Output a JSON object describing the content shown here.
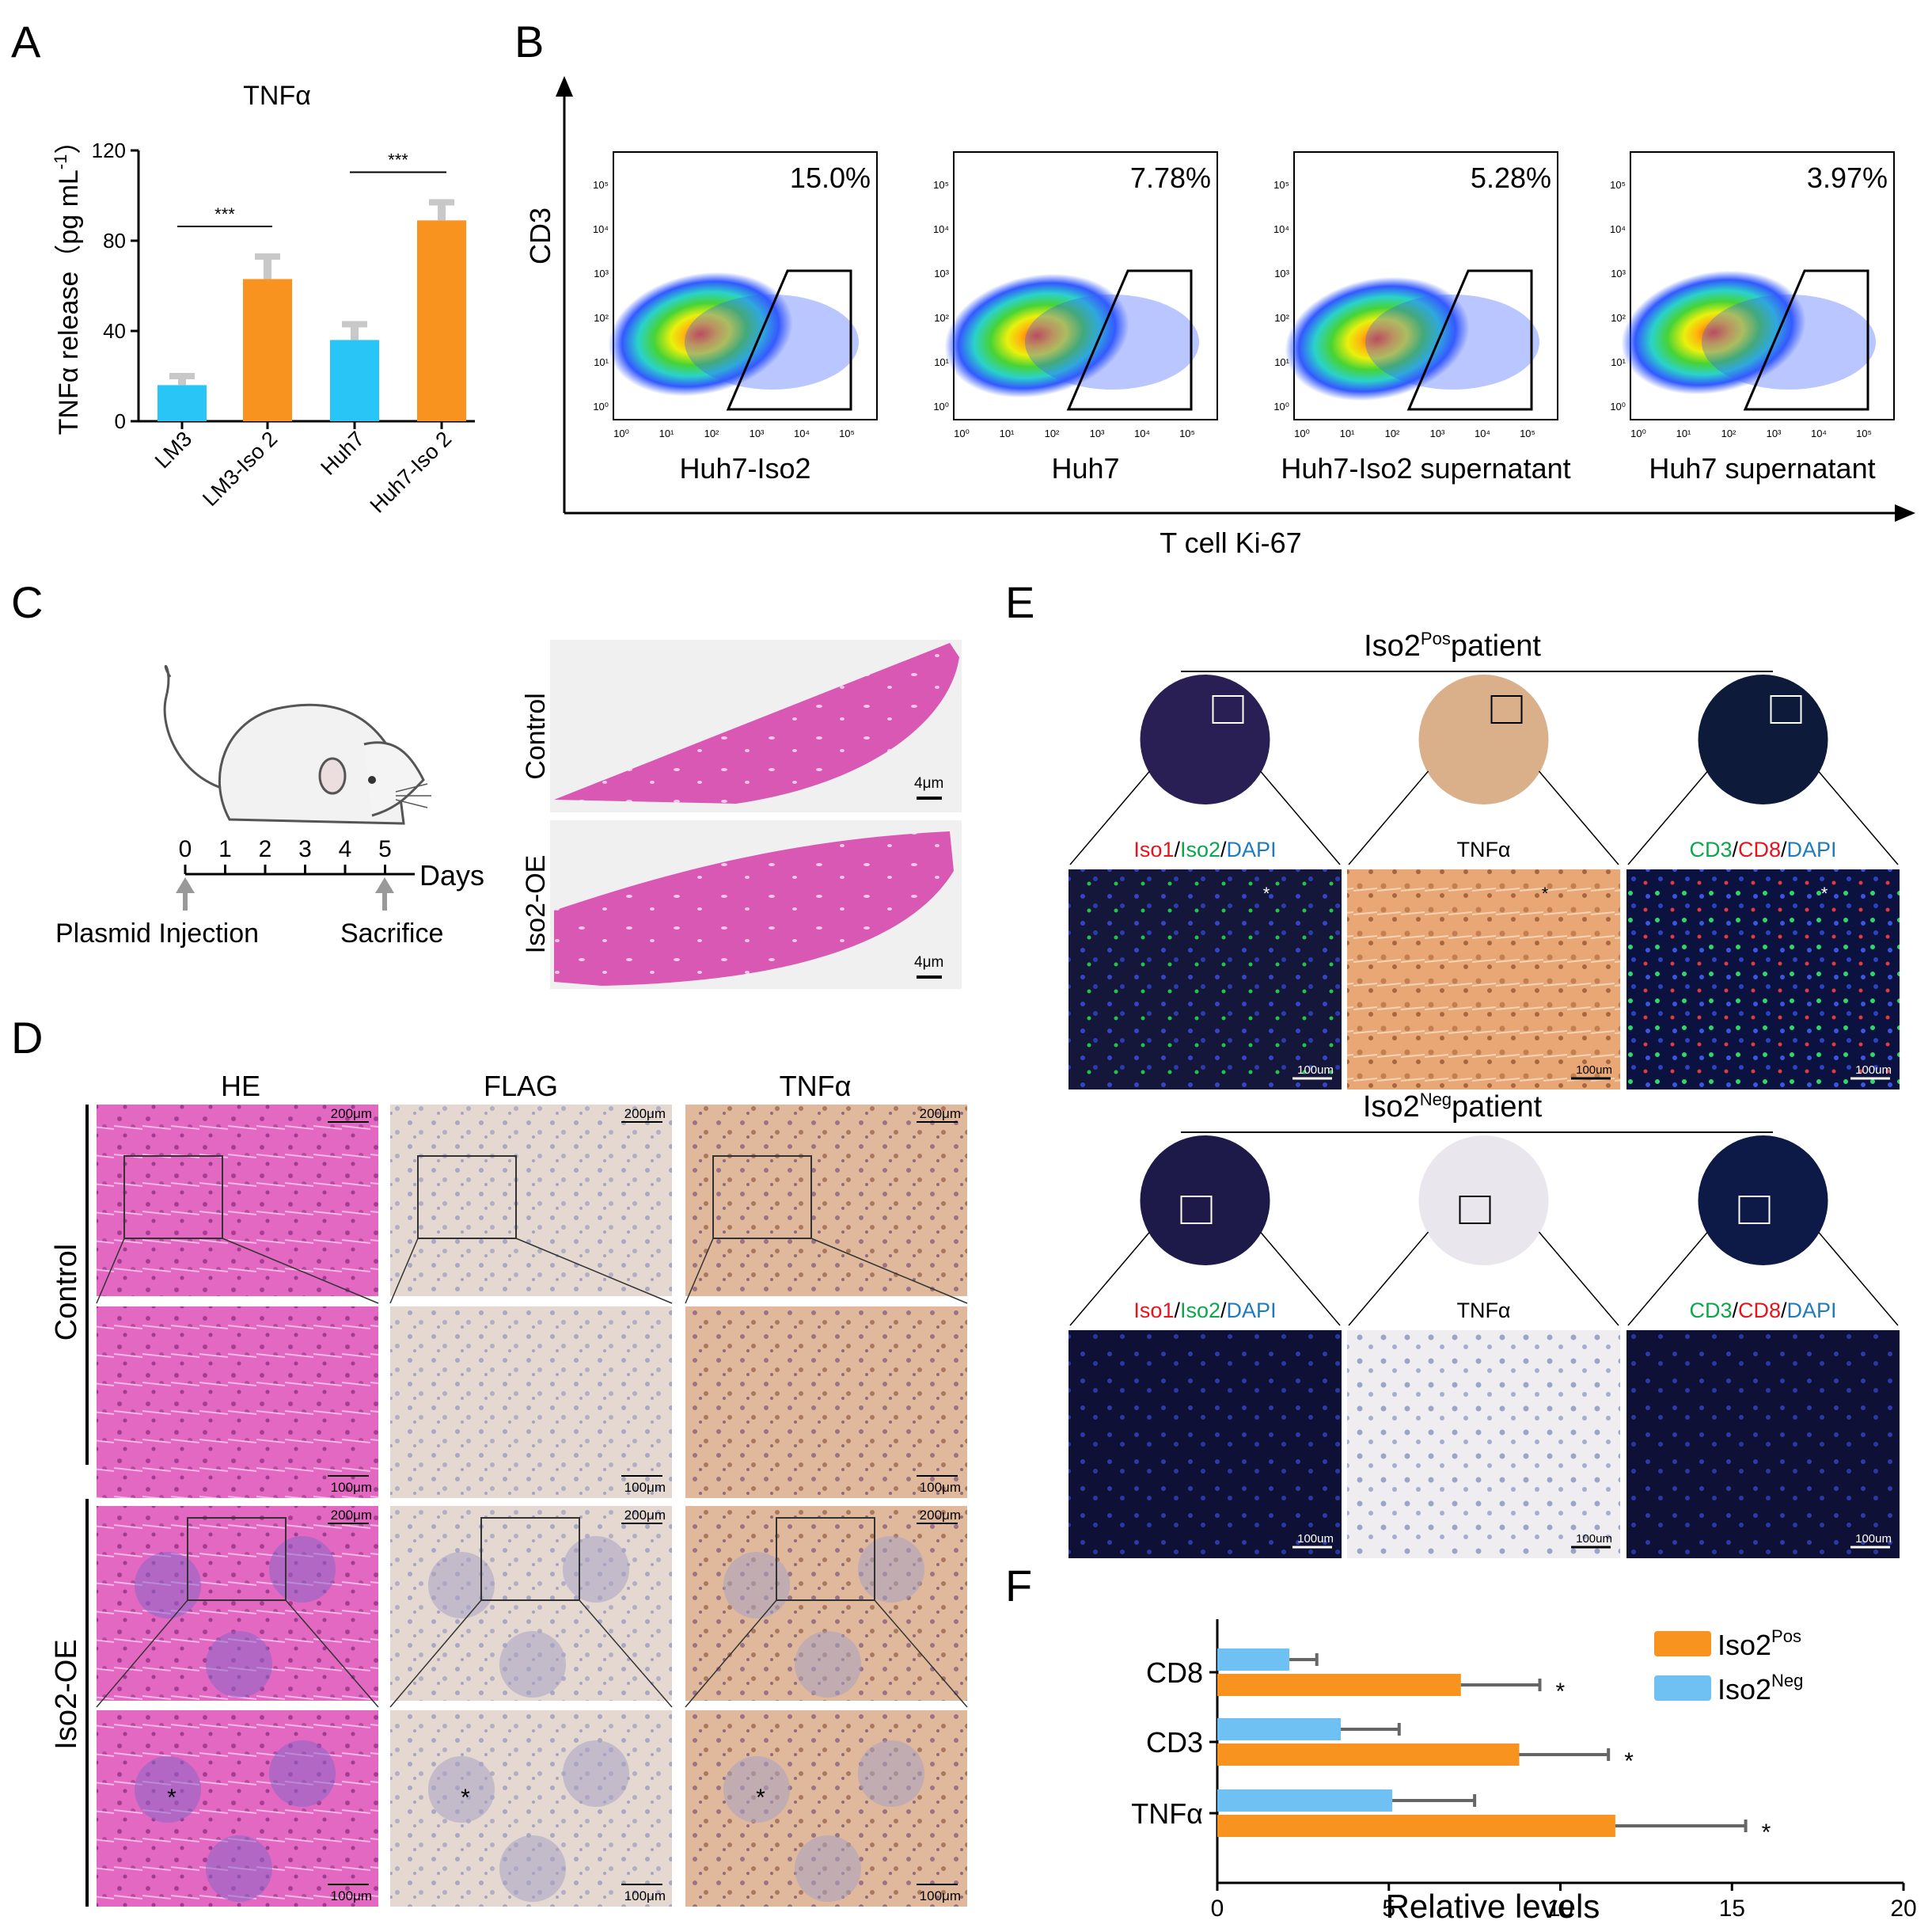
{
  "panel_letters": [
    "A",
    "B",
    "C",
    "D",
    "E",
    "F"
  ],
  "colors": {
    "orange": "#F7931E",
    "cyan": "#29C5F6",
    "lightblue": "#6EC1F2",
    "errorbar_grey": "#BFBFBF",
    "red_label": "#E8141B",
    "green_label": "#0AA84A",
    "blue_label": "#1E7BC2"
  },
  "chart_data": [
    {
      "panel": "A",
      "type": "bar",
      "title": "TNFα",
      "ylabel": "TNFα release（pg mL",
      "ylabel_sup": "-1",
      "ylabel_close": "）",
      "categories": [
        "LM3",
        "LM3-Iso 2",
        "Huh7",
        "Huh7-Iso 2"
      ],
      "values": [
        16,
        63,
        36,
        89
      ],
      "errors": [
        4,
        10,
        7,
        8
      ],
      "bar_colors": [
        "#29C5F6",
        "#F7931E",
        "#29C5F6",
        "#F7931E"
      ],
      "ylim": [
        0,
        120
      ],
      "yticks": [
        "0",
        "40",
        "80",
        "120"
      ],
      "significance": [
        {
          "between": [
            0,
            1
          ],
          "label": "***"
        },
        {
          "between": [
            2,
            3
          ],
          "label": "***"
        }
      ]
    },
    {
      "panel": "B",
      "type": "scatter",
      "ylabel": "CD3",
      "xlabel": "T cell  Ki-67",
      "tick_labels": [
        "10⁰",
        "10¹",
        "10²",
        "10³",
        "10⁴",
        "10⁵"
      ],
      "plots": [
        {
          "name": "Huh7-Iso2",
          "percent": "15.0%"
        },
        {
          "name": "Huh7",
          "percent": "7.78%"
        },
        {
          "name": "Huh7-Iso2 supernatant",
          "percent": "5.28%"
        },
        {
          "name": "Huh7 supernatant",
          "percent": "3.97%"
        }
      ]
    },
    {
      "panel": "F",
      "type": "bar",
      "orientation": "horizontal",
      "xlabel": "Relative levels",
      "categories": [
        "CD8",
        "CD3",
        "TNFα"
      ],
      "series": [
        {
          "name": "Iso2",
          "sup": "Pos",
          "color": "#F7931E",
          "values": [
            7.1,
            8.8,
            11.6
          ],
          "errors": [
            2.3,
            2.6,
            3.8
          ]
        },
        {
          "name": "Iso2",
          "sup": "Neg",
          "color": "#6EC1F2",
          "values": [
            2.1,
            3.6,
            5.1
          ],
          "errors": [
            0.8,
            1.7,
            2.4
          ]
        }
      ],
      "significance": [
        "*",
        "*",
        "*"
      ],
      "xlim": [
        0,
        20
      ],
      "xticks": [
        "0",
        "5",
        "10",
        "15",
        "20"
      ]
    }
  ],
  "panel_c": {
    "days_label": "Days",
    "day_ticks": [
      "0",
      "1",
      "2",
      "3",
      "4",
      "5"
    ],
    "injection_label": "Plasmid Injection",
    "sacrifice_label": "Sacrifice",
    "rows": [
      "Control",
      "Iso2-OE"
    ],
    "scale": "4μm"
  },
  "panel_d": {
    "columns": [
      "HE",
      "FLAG",
      "TNFα"
    ],
    "rows": [
      "Control",
      "Iso2-OE"
    ],
    "scale_low": "200μm",
    "scale_high": "100μm",
    "asterisk": "*"
  },
  "panel_e": {
    "groups": [
      {
        "title": "Iso2",
        "sup": "Pos",
        "suffix": "patient",
        "scale": "100um"
      },
      {
        "title": "Iso2",
        "sup": "Neg",
        "suffix": "patient",
        "scale": "100um"
      }
    ],
    "col1": {
      "a": "Iso1",
      "s1": "/",
      "b": "Iso2",
      "s2": "/",
      "c": "DAPI"
    },
    "col2": "TNFα",
    "col3": {
      "a": "CD3",
      "s1": "/",
      "b": "CD8",
      "s2": "/",
      "c": "DAPI"
    },
    "asterisk": "*"
  }
}
